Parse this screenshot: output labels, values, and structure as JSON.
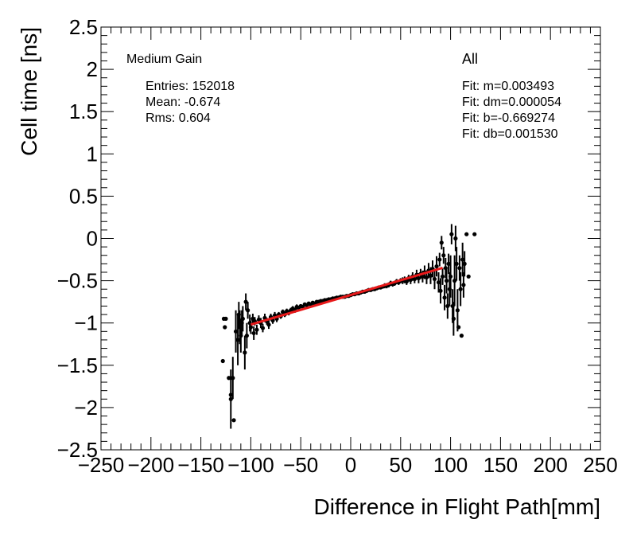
{
  "chart_data": {
    "type": "scatter",
    "title": "",
    "xlabel": "Difference in Flight Path[mm]",
    "ylabel": "Cell time [ns]",
    "xlim": [
      -250,
      250
    ],
    "ylim": [
      -2.5,
      2.5
    ],
    "x_ticks": [
      -250,
      -200,
      -150,
      -100,
      -50,
      0,
      50,
      100,
      150,
      200,
      250
    ],
    "x_tick_labels": [
      "−250",
      "−200",
      "−150",
      "−100",
      "−50",
      "0",
      "50",
      "100",
      "150",
      "200",
      "250"
    ],
    "y_ticks": [
      -2.5,
      -2,
      -1.5,
      -1,
      -0.5,
      0,
      0.5,
      1,
      1.5,
      2,
      2.5
    ],
    "y_tick_labels": [
      "−2.5",
      "−2",
      "−1.5",
      "−1",
      "−0.5",
      "0",
      "0.5",
      "1",
      "1.5",
      "2",
      "2.5"
    ],
    "stats": {
      "gain_label": "Medium Gain",
      "entries": "Entries: 152018",
      "mean": "Mean: -0.674",
      "rms": "Rms: 0.604"
    },
    "fit_box": {
      "label": "All",
      "m": "Fit: m=0.003493",
      "dm": "Fit: dm=0.000054",
      "b": "Fit: b=-0.669274",
      "db": "Fit: db=0.001530"
    },
    "fit_line": {
      "slope": 0.003493,
      "intercept": -0.669274,
      "x_range": [
        -100,
        92
      ],
      "color": "#e8191a"
    },
    "series": [
      {
        "marker_color": "#000000",
        "points": [
          [
            -127,
            -0.95,
            0
          ],
          [
            -126,
            -1.05,
            0
          ],
          [
            -125,
            -0.95,
            0
          ],
          [
            -128,
            -1.45,
            0
          ],
          [
            -122,
            -1.65,
            0
          ],
          [
            -120,
            -1.85,
            0
          ],
          [
            -118,
            -1.65,
            0.25
          ],
          [
            -117,
            -2.15,
            0
          ],
          [
            -120,
            -1.9,
            0.35
          ],
          [
            -115,
            -1.1,
            0.25
          ],
          [
            -113,
            -1.2,
            0.3
          ],
          [
            -112,
            -0.9,
            0.15
          ],
          [
            -111,
            -1.05,
            0.2
          ],
          [
            -110,
            -1.15,
            0.2
          ],
          [
            -109,
            -1.0,
            0.15
          ],
          [
            -108,
            -0.95,
            0.15
          ],
          [
            -106,
            -1.35,
            0.2
          ],
          [
            -105,
            -0.75,
            0.1
          ],
          [
            -104,
            -1.15,
            0.15
          ],
          [
            -103,
            -0.85,
            0.1
          ],
          [
            -101,
            -1.0,
            0.1
          ],
          [
            -100,
            -1.05,
            0.08
          ],
          [
            -98,
            -0.95,
            0.06
          ],
          [
            -97,
            -1.12,
            0.08
          ],
          [
            -96,
            -0.98,
            0.05
          ],
          [
            -94,
            -1.08,
            0.06
          ],
          [
            -92,
            -0.96,
            0.05
          ],
          [
            -90,
            -1.0,
            0.06
          ],
          [
            -88,
            -1.06,
            0.05
          ],
          [
            -86,
            -0.94,
            0.05
          ],
          [
            -84,
            -0.98,
            0.04
          ],
          [
            -82,
            -1.02,
            0.05
          ],
          [
            -80,
            -0.93,
            0.04
          ],
          [
            -78,
            -0.97,
            0.04
          ],
          [
            -76,
            -0.91,
            0.04
          ],
          [
            -74,
            -0.95,
            0.04
          ],
          [
            -72,
            -0.9,
            0.03
          ],
          [
            -70,
            -0.92,
            0.03
          ],
          [
            -68,
            -0.87,
            0.03
          ],
          [
            -66,
            -0.9,
            0.03
          ],
          [
            -64,
            -0.86,
            0.03
          ],
          [
            -62,
            -0.88,
            0.03
          ],
          [
            -60,
            -0.85,
            0.03
          ],
          [
            -58,
            -0.83,
            0.03
          ],
          [
            -56,
            -0.85,
            0.03
          ],
          [
            -54,
            -0.81,
            0.03
          ],
          [
            -52,
            -0.82,
            0.02
          ],
          [
            -50,
            -0.8,
            0.02
          ],
          [
            -48,
            -0.81,
            0.02
          ],
          [
            -46,
            -0.78,
            0.02
          ],
          [
            -44,
            -0.79,
            0.02
          ],
          [
            -42,
            -0.77,
            0.02
          ],
          [
            -40,
            -0.78,
            0.02
          ],
          [
            -38,
            -0.76,
            0.02
          ],
          [
            -36,
            -0.77,
            0.02
          ],
          [
            -34,
            -0.75,
            0.02
          ],
          [
            -32,
            -0.75,
            0.02
          ],
          [
            -30,
            -0.74,
            0.02
          ],
          [
            -28,
            -0.74,
            0.02
          ],
          [
            -26,
            -0.73,
            0.02
          ],
          [
            -24,
            -0.73,
            0.02
          ],
          [
            -22,
            -0.72,
            0.02
          ],
          [
            -20,
            -0.72,
            0.02
          ],
          [
            -18,
            -0.71,
            0.02
          ],
          [
            -16,
            -0.71,
            0.02
          ],
          [
            -14,
            -0.7,
            0.02
          ],
          [
            -12,
            -0.7,
            0.02
          ],
          [
            -10,
            -0.69,
            0.02
          ],
          [
            -8,
            -0.69,
            0.02
          ],
          [
            -6,
            -0.69,
            0.02
          ],
          [
            -4,
            -0.68,
            0.02
          ],
          [
            -2,
            -0.68,
            0.02
          ],
          [
            0,
            -0.67,
            0.02
          ],
          [
            2,
            -0.66,
            0.02
          ],
          [
            4,
            -0.66,
            0.02
          ],
          [
            6,
            -0.65,
            0.02
          ],
          [
            8,
            -0.65,
            0.02
          ],
          [
            10,
            -0.64,
            0.02
          ],
          [
            12,
            -0.63,
            0.02
          ],
          [
            14,
            -0.63,
            0.02
          ],
          [
            16,
            -0.62,
            0.02
          ],
          [
            18,
            -0.61,
            0.02
          ],
          [
            20,
            -0.61,
            0.02
          ],
          [
            22,
            -0.6,
            0.02
          ],
          [
            24,
            -0.6,
            0.02
          ],
          [
            26,
            -0.59,
            0.02
          ],
          [
            28,
            -0.58,
            0.02
          ],
          [
            30,
            -0.58,
            0.02
          ],
          [
            32,
            -0.57,
            0.02
          ],
          [
            34,
            -0.56,
            0.03
          ],
          [
            36,
            -0.56,
            0.03
          ],
          [
            38,
            -0.55,
            0.03
          ],
          [
            40,
            -0.53,
            0.03
          ],
          [
            42,
            -0.54,
            0.03
          ],
          [
            44,
            -0.53,
            0.03
          ],
          [
            46,
            -0.51,
            0.03
          ],
          [
            48,
            -0.52,
            0.03
          ],
          [
            50,
            -0.5,
            0.03
          ],
          [
            52,
            -0.5,
            0.04
          ],
          [
            54,
            -0.49,
            0.04
          ],
          [
            56,
            -0.51,
            0.04
          ],
          [
            58,
            -0.47,
            0.04
          ],
          [
            60,
            -0.49,
            0.05
          ],
          [
            62,
            -0.45,
            0.05
          ],
          [
            64,
            -0.48,
            0.05
          ],
          [
            66,
            -0.43,
            0.06
          ],
          [
            68,
            -0.47,
            0.06
          ],
          [
            70,
            -0.42,
            0.06
          ],
          [
            72,
            -0.45,
            0.07
          ],
          [
            74,
            -0.4,
            0.08
          ],
          [
            76,
            -0.46,
            0.08
          ],
          [
            78,
            -0.38,
            0.09
          ],
          [
            80,
            -0.44,
            0.1
          ],
          [
            82,
            -0.36,
            0.1
          ],
          [
            84,
            -0.48,
            0.12
          ],
          [
            86,
            -0.33,
            0.12
          ],
          [
            88,
            -0.52,
            0.12
          ],
          [
            89,
            -0.25,
            0.08
          ],
          [
            90,
            -0.62,
            0.15
          ],
          [
            91,
            -0.05,
            0.08
          ],
          [
            92,
            -0.45,
            0.1
          ],
          [
            93,
            -0.2,
            0.1
          ],
          [
            94,
            -0.7,
            0.15
          ],
          [
            95,
            -0.35,
            0.12
          ],
          [
            96,
            -0.5,
            0.15
          ],
          [
            97,
            -0.8,
            0.15
          ],
          [
            98,
            -0.3,
            0.12
          ],
          [
            99,
            -0.6,
            0.2
          ],
          [
            100,
            -0.45,
            0.25
          ],
          [
            101,
            0.05,
            0.12
          ],
          [
            102,
            -0.8,
            0.2
          ],
          [
            103,
            -0.95,
            0.2
          ],
          [
            104,
            -0.5,
            0.3
          ],
          [
            105,
            0.0,
            0.15
          ],
          [
            106,
            -0.3,
            0.2
          ],
          [
            107,
            -0.85,
            0.25
          ],
          [
            108,
            -1.05,
            0.0
          ],
          [
            109,
            -0.35,
            0.15
          ],
          [
            110,
            -0.6,
            0.2
          ],
          [
            111,
            -1.15,
            0.0
          ],
          [
            112,
            -0.25,
            0.2
          ],
          [
            113,
            -0.55,
            0.15
          ],
          [
            114,
            -0.3,
            0.15
          ],
          [
            116,
            0.05,
            0.0
          ],
          [
            118,
            -0.45,
            0.0
          ],
          [
            124,
            0.05,
            0.0
          ]
        ]
      }
    ]
  }
}
